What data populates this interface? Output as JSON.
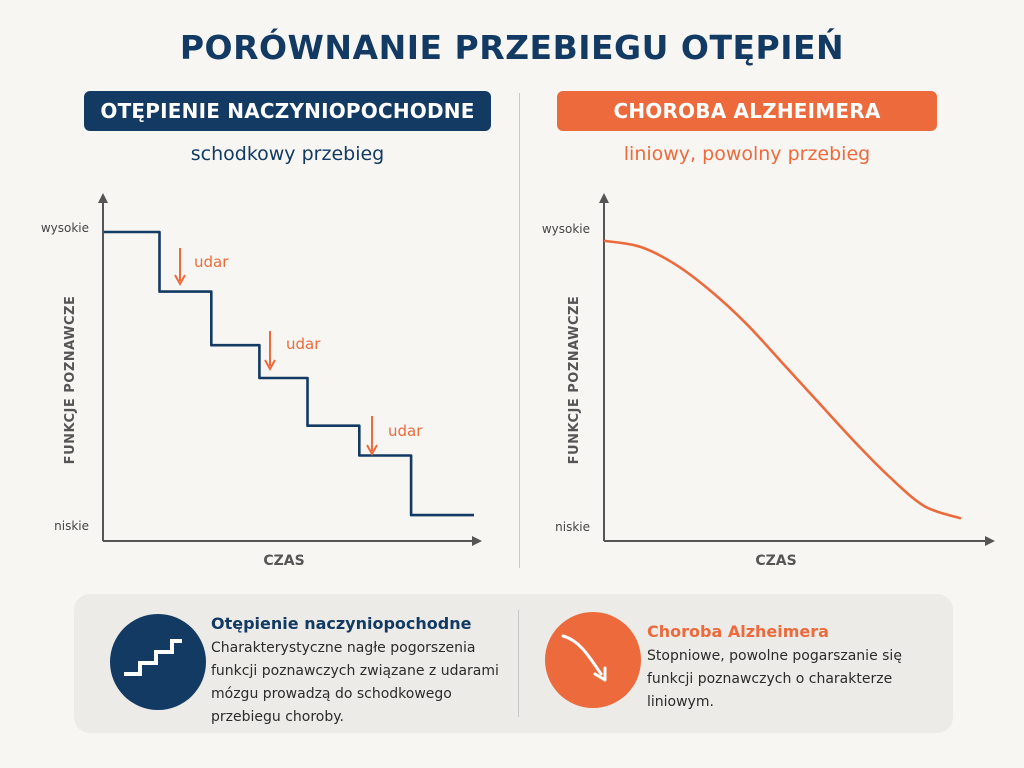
{
  "title": "PORÓWNANIE PRZEBIEGU OTĘPIEŃ",
  "left_panel": {
    "label": "OTĘPIENIE NACZYNIOPOCHODNE",
    "subtitle": "schodkowy przebieg",
    "color": "#123a63",
    "annotation_color": "#ec6a3b"
  },
  "right_panel": {
    "label": "CHOROBA ALZHEIMERA",
    "subtitle": "liniowy, powolny przebieg",
    "color": "#ec6a3b"
  },
  "chart_data": [
    {
      "type": "line",
      "xlabel": "CZAS",
      "ylabel": "FUNKCJE POZNAWCZE",
      "y_ticks": [
        "wysokie",
        "niskie"
      ],
      "annotations": [
        "udar",
        "udar",
        "udar"
      ],
      "series": [
        {
          "x": [
            0,
            0.15,
            0.15,
            0.29,
            0.29,
            0.42,
            0.42,
            0.55,
            0.55,
            0.69,
            0.69,
            0.83,
            0.83,
            1.0
          ],
          "y": [
            1.0,
            1.0,
            0.8,
            0.8,
            0.62,
            0.62,
            0.51,
            0.51,
            0.35,
            0.35,
            0.25,
            0.25,
            0.05,
            0.05
          ]
        }
      ]
    },
    {
      "type": "line",
      "xlabel": "CZAS",
      "ylabel": "FUNKCJE POZNAWCZE",
      "y_ticks": [
        "wysokie",
        "niskie"
      ],
      "series": [
        {
          "x": [
            0,
            0.1,
            0.2,
            0.3,
            0.4,
            0.5,
            0.6,
            0.7,
            0.8,
            0.9,
            1.0
          ],
          "y": [
            0.97,
            0.95,
            0.89,
            0.8,
            0.69,
            0.56,
            0.43,
            0.3,
            0.18,
            0.08,
            0.04
          ]
        }
      ]
    }
  ],
  "info": {
    "left": {
      "title": "Otępienie naczyniopochodne",
      "text": "Charakterystyczne nagłe pogorszenia funkcji poznawczych związane z udarami mózgu prowadzą do schodkowego przebiegu choroby.",
      "icon": "stairs-icon"
    },
    "right": {
      "title": "Choroba Alzheimera",
      "text": "Stopniowe, powolne pogarszanie się funkcji poznawczych o charakterze liniowym.",
      "icon": "decline-arrow-icon"
    }
  }
}
